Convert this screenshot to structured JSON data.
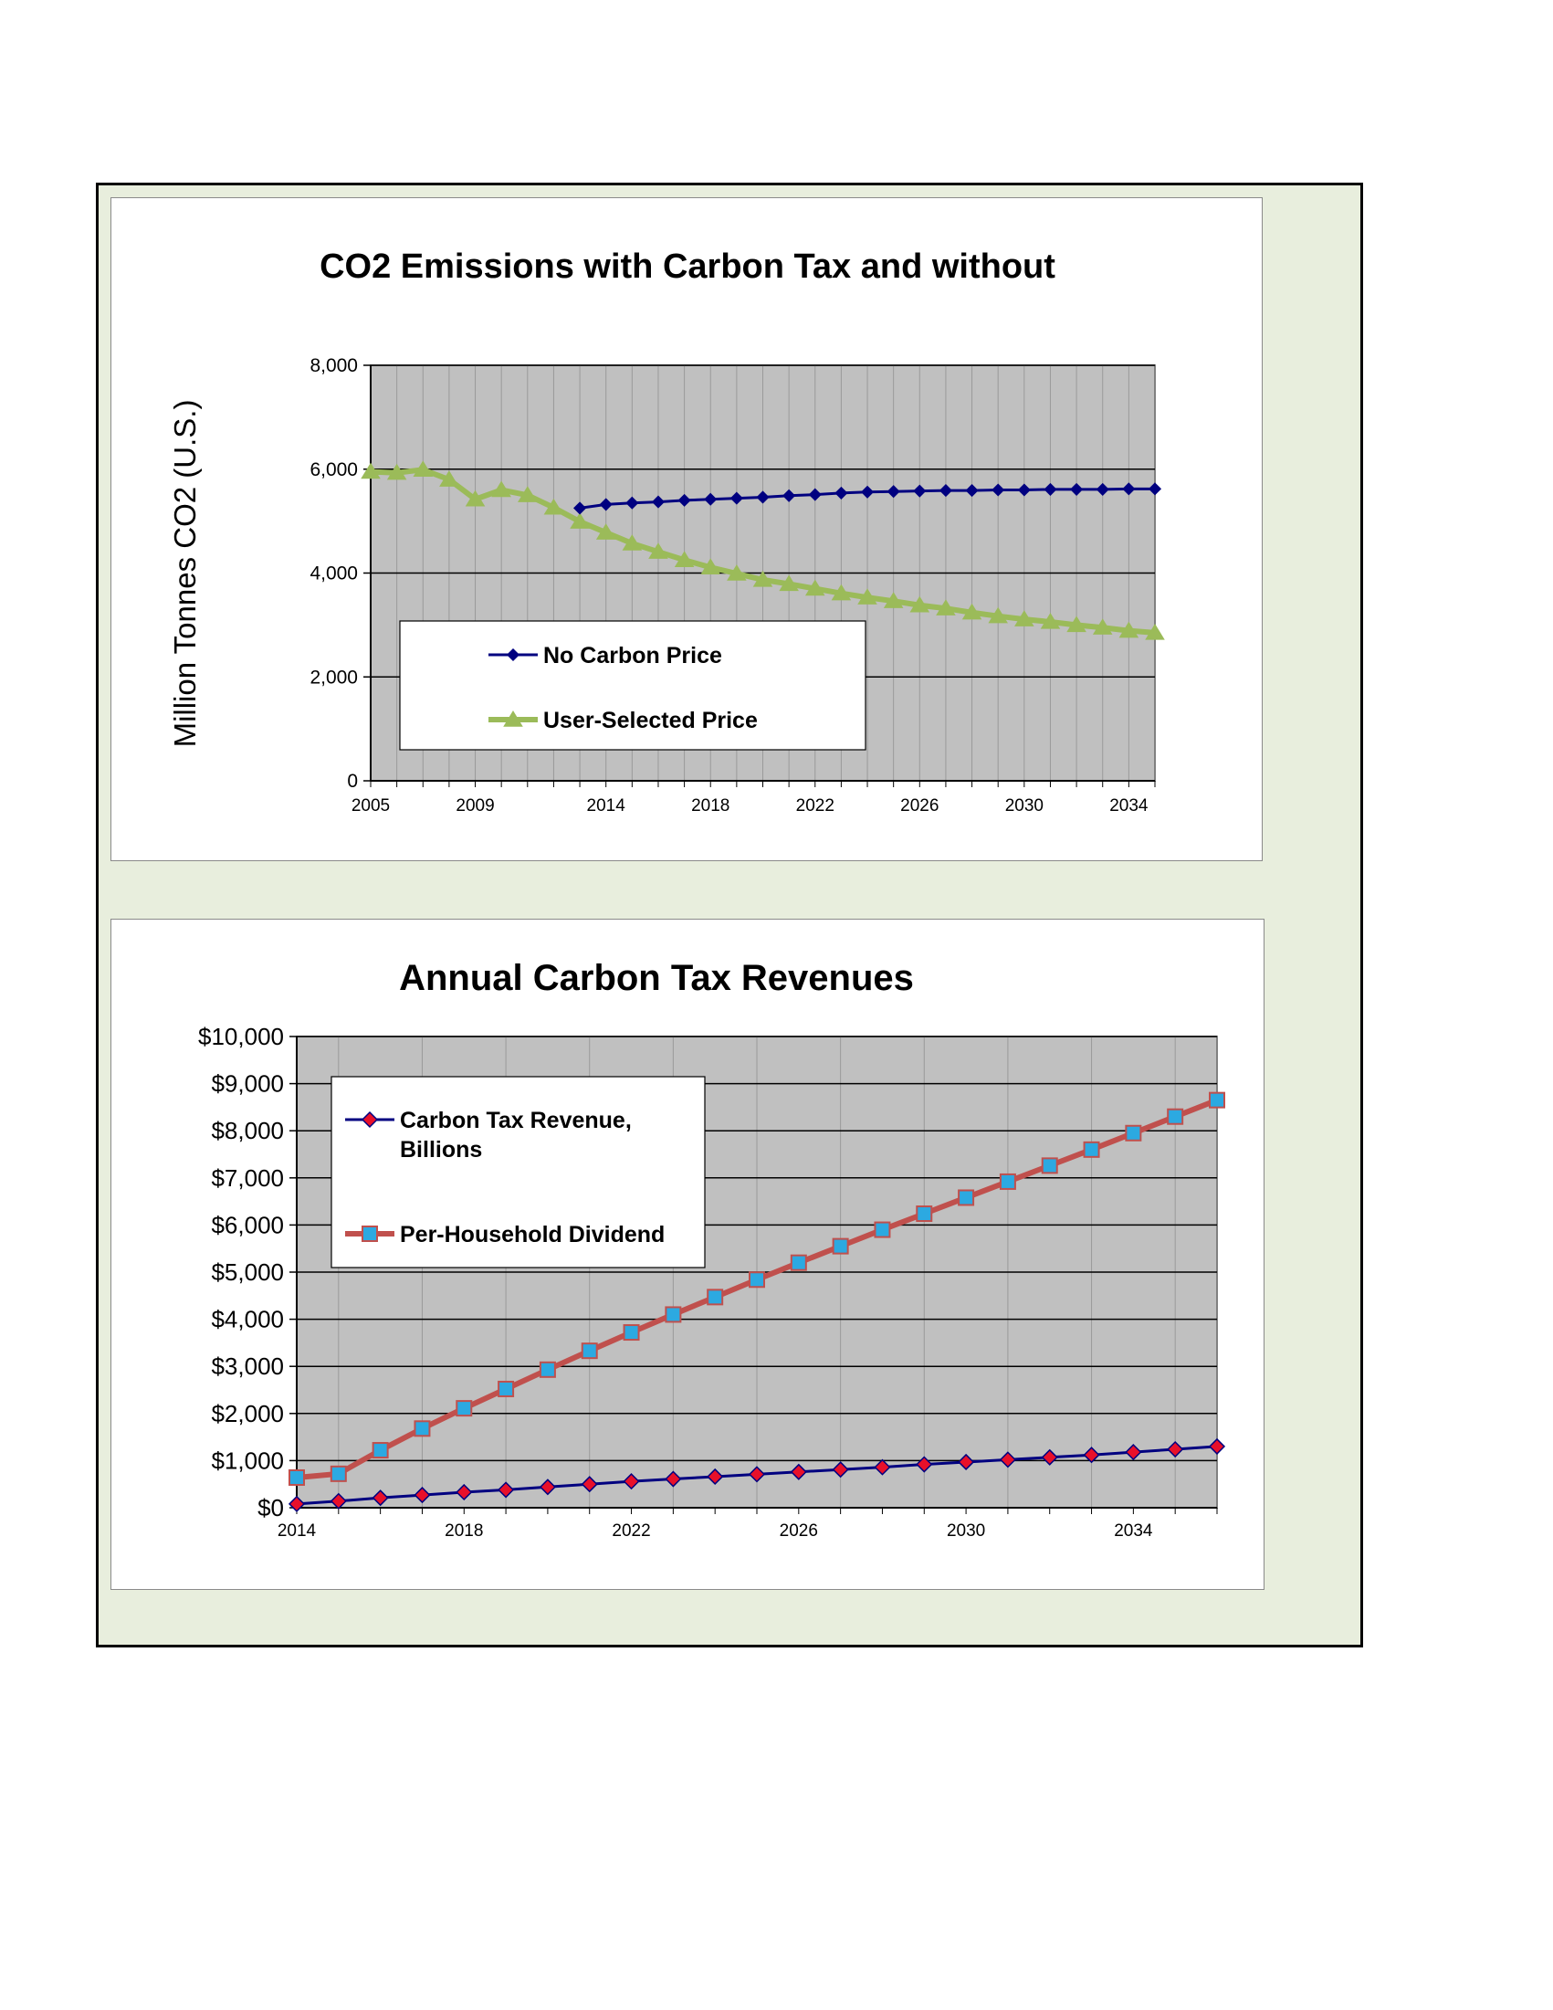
{
  "chart_data": [
    {
      "type": "line",
      "title": "CO2 Emissions with Carbon Tax and without",
      "ylabel": "Million Tonnes CO2 (U.S.)",
      "xlabel": "",
      "ylim": [
        0,
        8000
      ],
      "xlim": [
        2005,
        2035
      ],
      "yticks": [
        "0",
        "2,000",
        "4,000",
        "6,000",
        "8,000"
      ],
      "xticks": [
        "2005",
        "2009",
        "2014",
        "2018",
        "2022",
        "2026",
        "2030",
        "2034"
      ],
      "grid": true,
      "legend_position": "bottom-left",
      "series": [
        {
          "name": "No Carbon Price",
          "color": "#000080",
          "marker": "diamond",
          "x": [
            2013,
            2014,
            2015,
            2016,
            2017,
            2018,
            2019,
            2020,
            2021,
            2022,
            2023,
            2024,
            2025,
            2026,
            2027,
            2028,
            2029,
            2030,
            2031,
            2032,
            2033,
            2034,
            2035
          ],
          "values": [
            5250,
            5320,
            5350,
            5370,
            5400,
            5420,
            5440,
            5460,
            5490,
            5510,
            5540,
            5560,
            5570,
            5580,
            5590,
            5590,
            5600,
            5600,
            5610,
            5610,
            5610,
            5620,
            5620
          ]
        },
        {
          "name": "User-Selected Price",
          "color": "#9BBB59",
          "marker": "triangle",
          "x": [
            2005,
            2006,
            2007,
            2008,
            2009,
            2010,
            2011,
            2012,
            2013,
            2014,
            2015,
            2016,
            2017,
            2018,
            2019,
            2020,
            2021,
            2022,
            2023,
            2024,
            2025,
            2026,
            2027,
            2028,
            2029,
            2030,
            2031,
            2032,
            2033,
            2034,
            2035
          ],
          "values": [
            5950,
            5930,
            5990,
            5800,
            5420,
            5600,
            5500,
            5260,
            4990,
            4780,
            4570,
            4410,
            4250,
            4110,
            3990,
            3870,
            3790,
            3700,
            3610,
            3530,
            3460,
            3380,
            3320,
            3240,
            3170,
            3110,
            3060,
            3000,
            2950,
            2890,
            2850
          ]
        }
      ]
    },
    {
      "type": "line",
      "title": "Annual Carbon Tax Revenues",
      "xlabel": "",
      "ylabel": "",
      "ylim": [
        0,
        10000
      ],
      "xlim": [
        2014,
        2036
      ],
      "yticks": [
        "$0",
        "$1,000",
        "$2,000",
        "$3,000",
        "$4,000",
        "$5,000",
        "$6,000",
        "$7,000",
        "$8,000",
        "$9,000",
        "$10,000"
      ],
      "xticks": [
        "2014",
        "2018",
        "2022",
        "2026",
        "2030",
        "2034"
      ],
      "grid": true,
      "legend_position": "top-left",
      "series": [
        {
          "name": "Carbon Tax Revenue, Billions",
          "name_lines": [
            "Carbon Tax Revenue,",
            "Billions"
          ],
          "color": "#000080",
          "marker_fill": "#E8102A",
          "marker": "diamond",
          "x": [
            2014,
            2015,
            2016,
            2017,
            2018,
            2019,
            2020,
            2021,
            2022,
            2023,
            2024,
            2025,
            2026,
            2027,
            2028,
            2029,
            2030,
            2031,
            2032,
            2033,
            2034,
            2035,
            2036
          ],
          "values": [
            80,
            140,
            210,
            270,
            330,
            380,
            440,
            500,
            560,
            610,
            660,
            710,
            760,
            810,
            860,
            920,
            970,
            1020,
            1070,
            1120,
            1180,
            1240,
            1300
          ]
        },
        {
          "name": "Per-Household Dividend",
          "color": "#C0504D",
          "marker_fill": "#2CA9E1",
          "marker": "square",
          "x": [
            2014,
            2015,
            2016,
            2017,
            2018,
            2019,
            2020,
            2021,
            2022,
            2023,
            2024,
            2025,
            2026,
            2027,
            2028,
            2029,
            2030,
            2031,
            2032,
            2033,
            2034,
            2035,
            2036
          ],
          "values": [
            640,
            720,
            1220,
            1680,
            2110,
            2520,
            2930,
            3330,
            3720,
            4100,
            4470,
            4840,
            5200,
            5550,
            5900,
            6240,
            6580,
            6920,
            7260,
            7600,
            7950,
            8300,
            8650
          ]
        }
      ]
    }
  ]
}
